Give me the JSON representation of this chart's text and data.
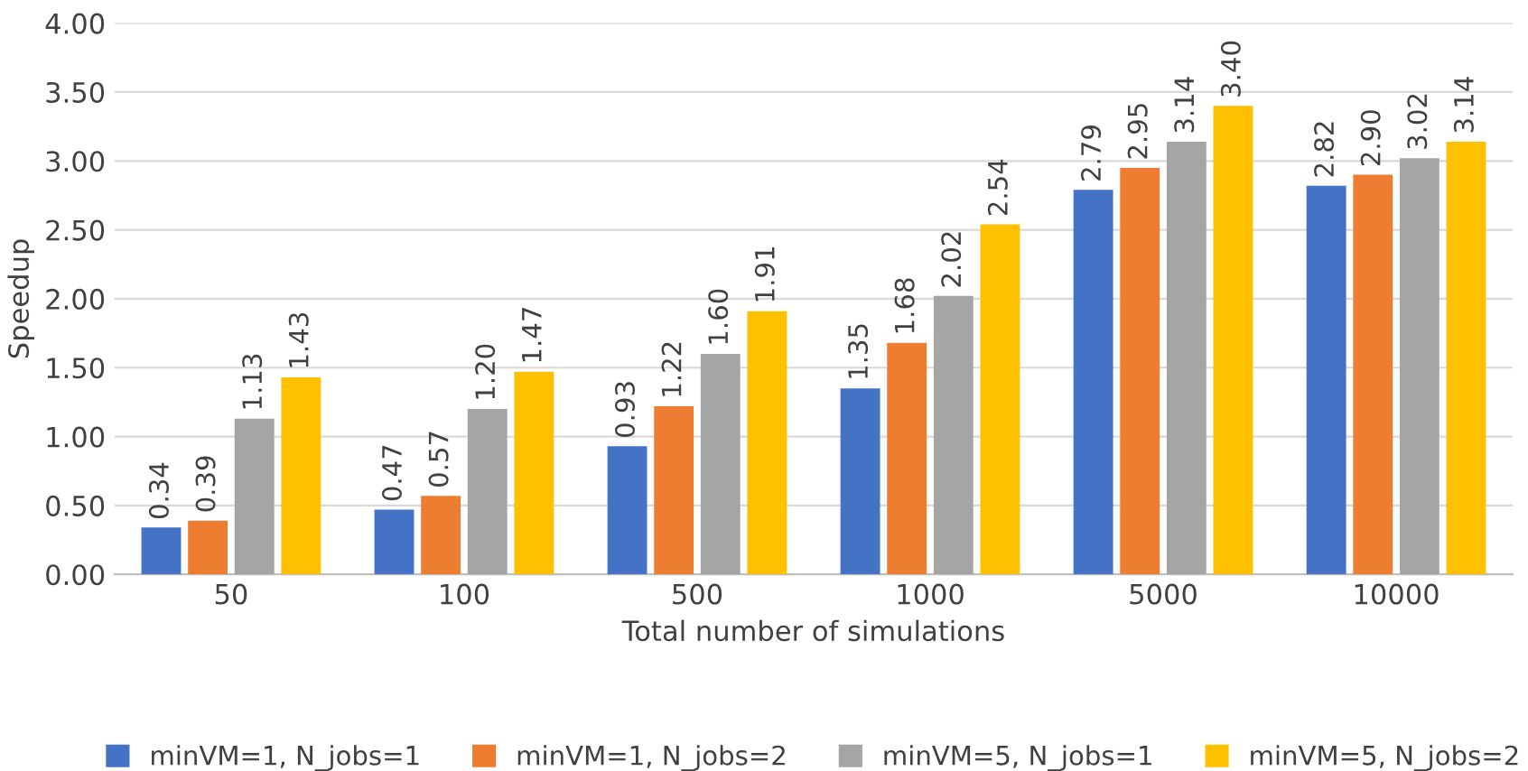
{
  "chart_data": {
    "type": "bar",
    "xlabel": "Total number of simulations",
    "ylabel": "Speedup",
    "categories": [
      "50",
      "100",
      "500",
      "1000",
      "5000",
      "10000"
    ],
    "series": [
      {
        "name": "minVM=1, N_jobs=1",
        "color": "#4472c4",
        "values": [
          0.34,
          0.47,
          0.93,
          1.35,
          2.79,
          2.82
        ],
        "value_labels": [
          "0.34",
          "0.47",
          "0.93",
          "1.35",
          "2.79",
          "2.82"
        ]
      },
      {
        "name": "minVM=1, N_jobs=2",
        "color": "#ed7d31",
        "values": [
          0.39,
          0.57,
          1.22,
          1.68,
          2.95,
          2.9
        ],
        "value_labels": [
          "0.39",
          "0.57",
          "1.22",
          "1.68",
          "2.95",
          "2.90"
        ]
      },
      {
        "name": "minVM=5, N_jobs=1",
        "color": "#a5a5a5",
        "values": [
          1.13,
          1.2,
          1.6,
          2.02,
          3.14,
          3.02
        ],
        "value_labels": [
          "1.13",
          "1.20",
          "1.60",
          "2.02",
          "3.14",
          "3.02"
        ]
      },
      {
        "name": "minVM=5, N_jobs=2",
        "color": "#ffc000",
        "values": [
          1.43,
          1.47,
          1.91,
          2.54,
          3.4,
          3.14
        ],
        "value_labels": [
          "1.43",
          "1.47",
          "1.91",
          "2.54",
          "3.40",
          "3.14"
        ]
      }
    ],
    "ylim": [
      0,
      4
    ],
    "yticks": [
      {
        "value": 0,
        "label": "0.00"
      },
      {
        "value": 0.5,
        "label": "0.50"
      },
      {
        "value": 1,
        "label": "1.00"
      },
      {
        "value": 1.5,
        "label": "1.50"
      },
      {
        "value": 2,
        "label": "2.00"
      },
      {
        "value": 2.5,
        "label": "2.50"
      },
      {
        "value": 3,
        "label": "3.00"
      },
      {
        "value": 3.5,
        "label": "3.50"
      },
      {
        "value": 4,
        "label": "4.00"
      }
    ],
    "grid": "y",
    "legend": "bottom"
  }
}
